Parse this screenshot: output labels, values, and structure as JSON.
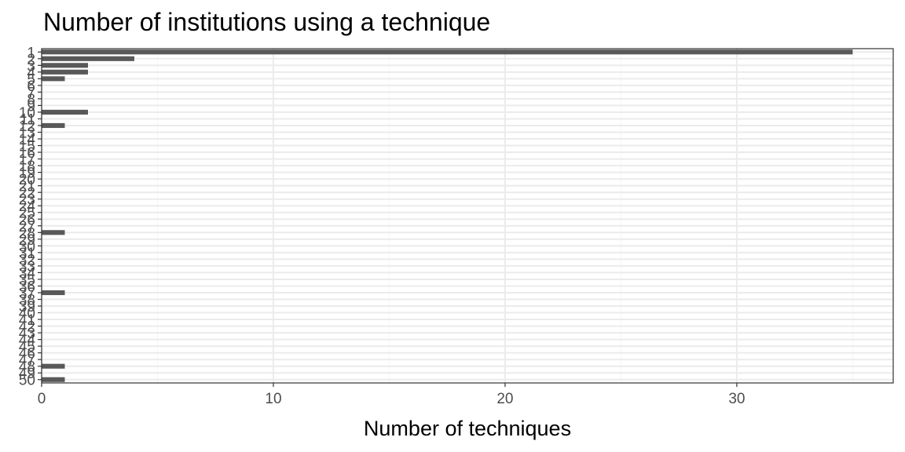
{
  "chart_data": {
    "type": "bar",
    "orientation": "horizontal",
    "title": "Number of institutions using a technique",
    "xlabel": "Number of techniques",
    "ylabel": "",
    "categories": [
      "1",
      "2",
      "3",
      "4",
      "5",
      "6",
      "7",
      "8",
      "9",
      "10",
      "11",
      "12",
      "13",
      "14",
      "15",
      "16",
      "17",
      "18",
      "19",
      "20",
      "21",
      "22",
      "23",
      "24",
      "25",
      "26",
      "27",
      "28",
      "29",
      "30",
      "31",
      "32",
      "33",
      "34",
      "35",
      "36",
      "37",
      "38",
      "39",
      "40",
      "41",
      "42",
      "43",
      "44",
      "45",
      "46",
      "47",
      "48",
      "49",
      "50"
    ],
    "values": [
      35,
      4,
      2,
      2,
      1,
      0,
      0,
      0,
      0,
      2,
      0,
      1,
      0,
      0,
      0,
      0,
      0,
      0,
      0,
      0,
      0,
      0,
      0,
      0,
      0,
      0,
      0,
      1,
      0,
      0,
      0,
      0,
      0,
      0,
      0,
      0,
      1,
      0,
      0,
      0,
      0,
      0,
      0,
      0,
      0,
      0,
      0,
      1,
      0,
      1
    ],
    "x_ticks": [
      0,
      10,
      20,
      30
    ],
    "xlim": [
      0,
      36.75
    ],
    "grid": true,
    "legend": "none",
    "colors": {
      "bar": "#595959",
      "grid_major": "#ebebeb",
      "grid_minor": "#f5f5f5",
      "panel_border": "#333333",
      "tick_text": "#4d4d4d"
    }
  }
}
